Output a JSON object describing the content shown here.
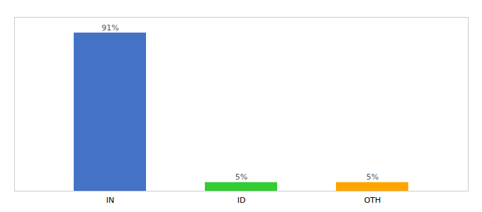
{
  "chart_data": {
    "type": "bar",
    "categories": [
      "IN",
      "ID",
      "OTH"
    ],
    "values": [
      91,
      5,
      5
    ],
    "value_labels": [
      "91%",
      "5%",
      "5%"
    ],
    "colors": [
      "#4472C4",
      "#33CC33",
      "#FFA500"
    ],
    "ylim": [
      0,
      100
    ],
    "data_labels": true,
    "tick_labels": "x",
    "grid": false
  }
}
